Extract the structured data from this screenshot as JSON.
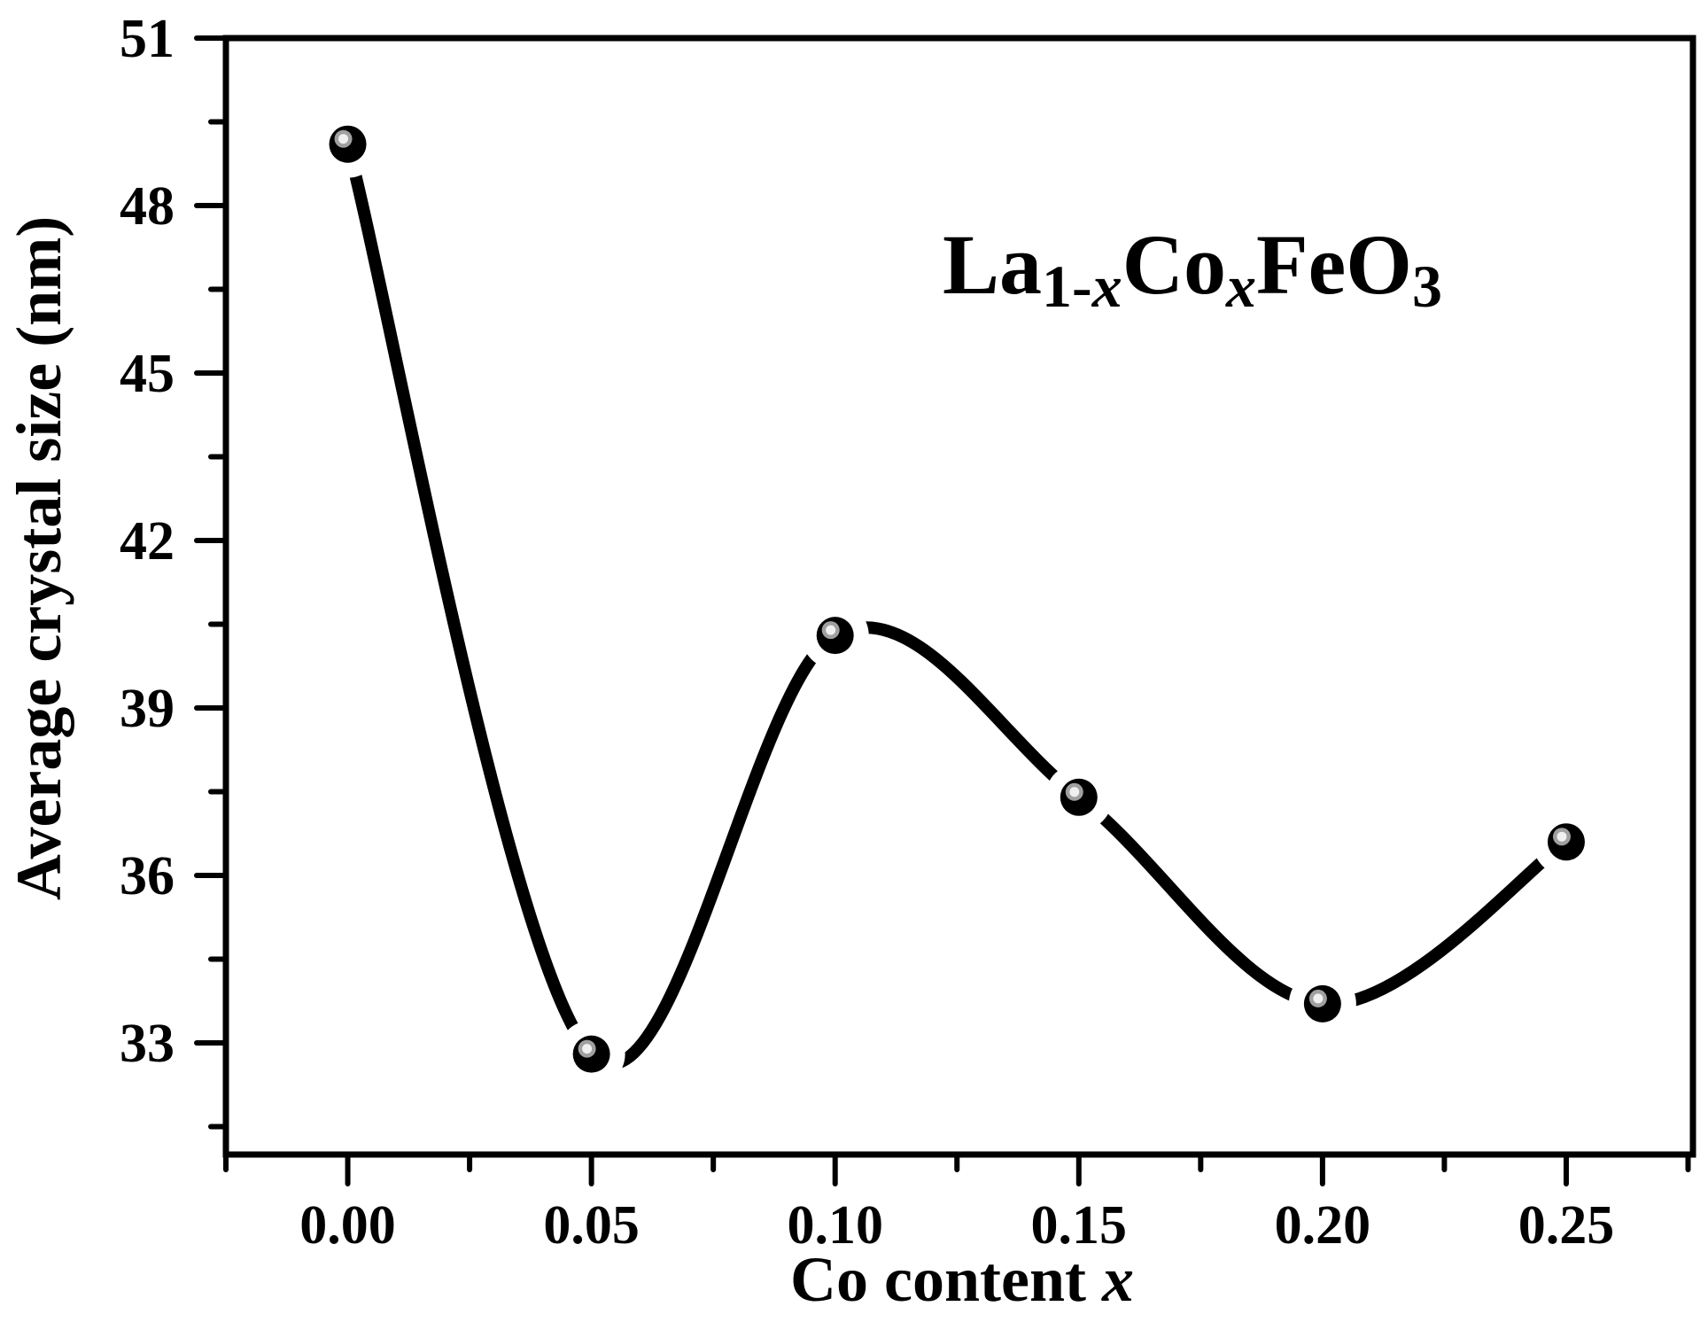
{
  "chart_data": {
    "type": "line",
    "title": "",
    "annotation": {
      "formula": "La1-xCoxFeO3",
      "parts": [
        {
          "text": "La",
          "style": "normal"
        },
        {
          "text": "1-",
          "style": "sub"
        },
        {
          "text": "x",
          "style": "sub-italic"
        },
        {
          "text": "Co",
          "style": "normal"
        },
        {
          "text": "x",
          "style": "sub-italic"
        },
        {
          "text": "FeO",
          "style": "normal"
        },
        {
          "text": "3",
          "style": "sub"
        }
      ]
    },
    "xlabel": "Co content x",
    "xlabel_parts": {
      "main": "Co content ",
      "italic": "x"
    },
    "ylabel": "Average crystal size (nm)",
    "xlim": [
      -0.025,
      0.276
    ],
    "ylim": [
      31,
      51
    ],
    "x_ticks": [
      0.0,
      0.05,
      0.1,
      0.15,
      0.2,
      0.25
    ],
    "x_tick_labels": [
      "0.00",
      "0.05",
      "0.10",
      "0.15",
      "0.20",
      "0.25"
    ],
    "x_minor_ticks": [
      -0.025,
      0.025,
      0.075,
      0.125,
      0.175,
      0.225,
      0.275
    ],
    "y_ticks": [
      33,
      36,
      39,
      42,
      45,
      48,
      51
    ],
    "y_tick_labels": [
      "33",
      "36",
      "39",
      "42",
      "45",
      "48",
      "51"
    ],
    "y_minor_ticks": [
      31.5,
      34.5,
      37.5,
      40.5,
      43.5,
      46.5,
      49.5
    ],
    "grid": false,
    "legend": null,
    "series": [
      {
        "name": "La1-xCoxFeO3",
        "x": [
          0.0,
          0.05,
          0.1,
          0.15,
          0.2,
          0.25
        ],
        "values": [
          49.1,
          32.8,
          40.3,
          37.4,
          33.7,
          36.6
        ],
        "line": "smooth spline",
        "marker": "sphere",
        "color": "#000000"
      }
    ]
  },
  "style": {
    "line_color": "#000000",
    "marker_color": "#000000",
    "marker_highlight": "#a0a0a0",
    "marker_highlight_core": "#f0f0f0",
    "background": "#ffffff"
  }
}
